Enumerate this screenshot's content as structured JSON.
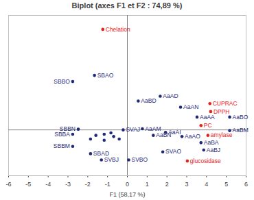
{
  "chart_data": {
    "type": "scatter",
    "title": "Biplot (axes F1 et F2 : 74,89 %)",
    "x_label": "F1 (58,17 %)",
    "xlim": [
      -6,
      6
    ],
    "xticks": [
      -6,
      -5,
      -4,
      -3,
      -2,
      -1,
      0,
      1,
      2,
      3,
      4,
      5,
      6
    ],
    "ylim": [
      -2,
      5
    ],
    "tick_labels": "x",
    "grid": false,
    "marker": "circle",
    "series": [
      {
        "color": "#1f2a7a",
        "labels": [
          "SBAO",
          "SBBO",
          "AaAD",
          "AaBD",
          "AaAN",
          "AaAA",
          "AaBO",
          "AaBM",
          "AaAM",
          "AaAI",
          "AaBN",
          "AaAO",
          "AaBA",
          "AaBJ",
          "SVAO",
          "SVBO",
          "SVBJ",
          "SBAD",
          "SBBM",
          "SBBA",
          "SBBN",
          "SVAJ",
          null,
          null,
          null,
          null,
          null,
          null,
          null
        ],
        "x": [
          -1.66,
          -2.76,
          1.66,
          0.55,
          2.69,
          3.52,
          5.17,
          5.17,
          0.76,
          1.93,
          1.31,
          2.76,
          3.72,
          3.86,
          1.79,
          0.07,
          -1.31,
          -1.86,
          -2.76,
          -2.76,
          -2.48,
          -0.21,
          -0.83,
          -1.17,
          -1.59,
          -0.69,
          -0.41,
          -1.17,
          -1.86
        ],
        "y": [
          2.38,
          2.11,
          1.47,
          1.26,
          0.99,
          0.56,
          0.56,
          -0.03,
          0.05,
          -0.11,
          -0.24,
          -0.29,
          -0.56,
          -0.88,
          -0.96,
          -1.31,
          -1.31,
          -1.04,
          -0.72,
          -0.19,
          0.03,
          0.0,
          -0.13,
          -0.19,
          -0.24,
          -0.29,
          -0.4,
          -0.45,
          -0.4
        ]
      },
      {
        "color": "#e8201a",
        "labels": [
          "Chelation",
          "CUPRAC",
          "DPPH",
          "PC",
          "amylase",
          "glucosidase"
        ],
        "x": [
          -1.24,
          4.17,
          4.21,
          3.72,
          4.07,
          3.03
        ],
        "y": [
          4.39,
          1.15,
          0.8,
          0.19,
          -0.24,
          -1.36
        ]
      }
    ]
  }
}
